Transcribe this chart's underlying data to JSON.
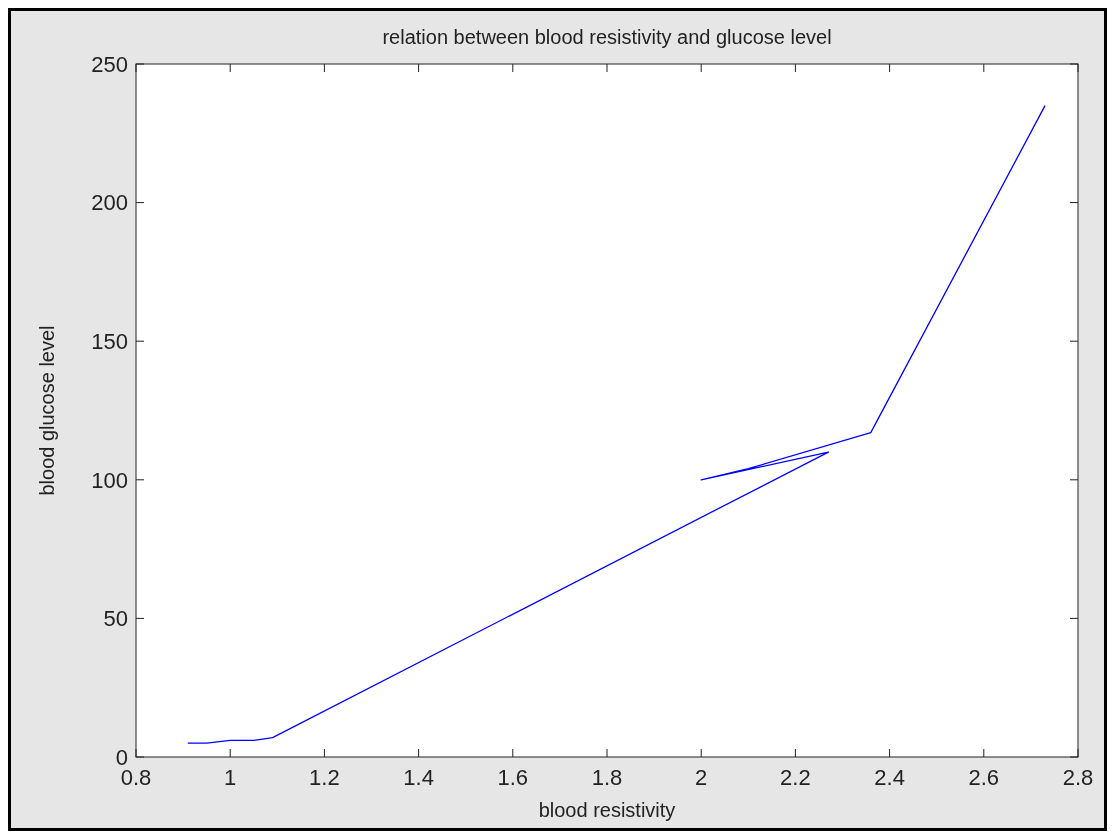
{
  "chart_data": {
    "type": "line",
    "title": "relation between blood resistivity and glucose level",
    "xlabel": "blood resistivity",
    "ylabel": "blood glucose level",
    "x": [
      0.91,
      0.95,
      1.0,
      1.05,
      1.09,
      2.27,
      2.0,
      2.1,
      2.36,
      2.73
    ],
    "series": [
      {
        "color": "#0000ff",
        "values": [
          5,
          5,
          6,
          6,
          7,
          110,
          100,
          104,
          117,
          235
        ]
      }
    ],
    "xlim": [
      0.8,
      2.8
    ],
    "xticks": [
      0.8,
      1,
      1.2,
      1.4,
      1.6,
      1.8,
      2,
      2.2,
      2.4,
      2.6,
      2.8
    ],
    "ylim": [
      0,
      250
    ],
    "yticks": [
      0,
      50,
      100,
      150,
      200,
      250
    ],
    "marker": "none",
    "line_style": "solid"
  }
}
